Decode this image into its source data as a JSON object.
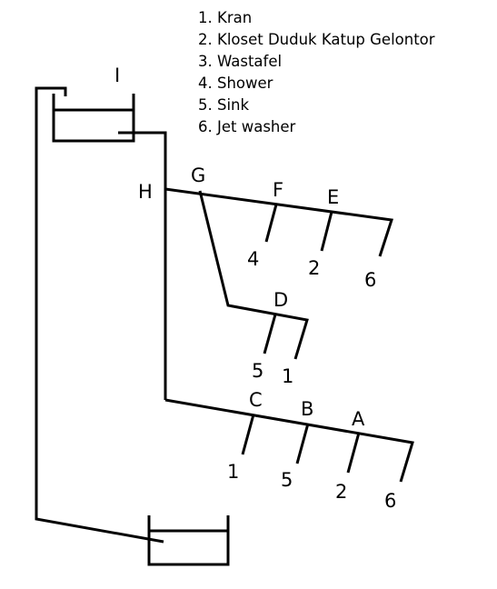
{
  "legend": [
    {
      "number": "1.",
      "label": "Kran"
    },
    {
      "number": "2.",
      "label": "Kloset Duduk Katup Gelontor"
    },
    {
      "number": "3.",
      "label": "Wastafel"
    },
    {
      "number": "4.",
      "label": "Shower"
    },
    {
      "number": "5.",
      "label": "Sink"
    },
    {
      "number": "6.",
      "label": "Jet washer"
    }
  ],
  "nodes": {
    "A": "A",
    "B": "B",
    "C": "C",
    "D": "D",
    "E": "E",
    "F": "F",
    "G": "G",
    "H": "H",
    "I": "I"
  },
  "fixtures": {
    "upper_1": "4",
    "upper_2": "2",
    "upper_3": "6",
    "middle_1": "5",
    "middle_2": "1",
    "lower_1": "1",
    "lower_2": "5",
    "lower_3": "2",
    "lower_4": "6"
  }
}
